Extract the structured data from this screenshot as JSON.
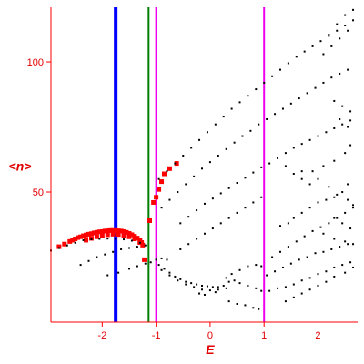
{
  "chart_data": {
    "type": "scatter",
    "title": "",
    "xlabel": "E",
    "ylabel": "<n>",
    "xlim": [
      -2.95,
      2.7
    ],
    "ylim": [
      0,
      121
    ],
    "grid": false,
    "axis_color": "#ff0000",
    "x_ticks": [
      {
        "value": -2,
        "label": "-2"
      },
      {
        "value": -1,
        "label": "-1"
      },
      {
        "value": 0,
        "label": "0"
      },
      {
        "value": 1,
        "label": "1"
      },
      {
        "value": 2,
        "label": "2"
      }
    ],
    "y_ticks": [
      {
        "value": 50,
        "label": "50"
      },
      {
        "value": 100,
        "label": "100"
      }
    ],
    "vlines": [
      {
        "x": -1.75,
        "color": "#0000ff",
        "style": "thick"
      },
      {
        "x": -1.14,
        "color": "#008000",
        "style": "medium"
      },
      {
        "x": -1.0,
        "color": "#ee00ee",
        "style": "thin"
      },
      {
        "x": 1.0,
        "color": "#ee00ee",
        "style": "thin"
      }
    ],
    "series": [
      {
        "color": "#ff0000",
        "marker": "square",
        "points": [
          [
            -2.8,
            29
          ],
          [
            -2.7,
            30
          ],
          [
            -2.6,
            31
          ],
          [
            -2.55,
            31.5
          ],
          [
            -2.5,
            32
          ],
          [
            -2.45,
            32.5
          ],
          [
            -2.4,
            32.8
          ],
          [
            -2.35,
            33.2
          ],
          [
            -2.3,
            33.5
          ],
          [
            -2.25,
            33.8
          ],
          [
            -2.2,
            34
          ],
          [
            -2.15,
            34.3
          ],
          [
            -2.1,
            34.5
          ],
          [
            -2.05,
            34.7
          ],
          [
            -2.0,
            34.8
          ],
          [
            -1.95,
            35
          ],
          [
            -1.9,
            35.1
          ],
          [
            -1.85,
            35.2
          ],
          [
            -1.8,
            35.2
          ],
          [
            -1.75,
            35.2
          ],
          [
            -1.7,
            35.1
          ],
          [
            -1.65,
            35
          ],
          [
            -1.6,
            34.8
          ],
          [
            -1.55,
            34.5
          ],
          [
            -1.5,
            34.1
          ],
          [
            -1.45,
            33.6
          ],
          [
            -1.4,
            33
          ],
          [
            -1.35,
            32.3
          ],
          [
            -1.3,
            31.4
          ],
          [
            -1.27,
            30.6
          ],
          [
            -1.25,
            29.6
          ],
          [
            -2.3,
            31.5
          ],
          [
            -2.2,
            32.2
          ],
          [
            -2.1,
            32.8
          ],
          [
            -2.0,
            33.2
          ],
          [
            -1.9,
            33.6
          ],
          [
            -1.8,
            33.8
          ],
          [
            -1.7,
            33.7
          ],
          [
            -1.6,
            33.4
          ],
          [
            -1.5,
            32.8
          ],
          [
            -1.4,
            32
          ],
          [
            -1.3,
            30.6
          ],
          [
            -1.22,
            24
          ],
          [
            -1.12,
            39
          ],
          [
            -1.05,
            46
          ],
          [
            -1.0,
            48
          ],
          [
            -0.95,
            51
          ],
          [
            -0.9,
            54
          ],
          [
            -0.85,
            57
          ],
          [
            -0.75,
            59
          ],
          [
            -0.62,
            61
          ]
        ]
      },
      {
        "color": "#000000",
        "marker": "dot",
        "points": [
          [
            -2.95,
            27.5
          ],
          [
            -2.8,
            28.5
          ],
          [
            -2.65,
            29.5
          ],
          [
            -2.5,
            30.5
          ],
          [
            -2.35,
            31.5
          ],
          [
            -2.2,
            31.8
          ],
          [
            -2.05,
            32
          ],
          [
            -1.9,
            32.1
          ],
          [
            -1.75,
            32
          ],
          [
            -1.6,
            31.8
          ],
          [
            -1.45,
            31.3
          ],
          [
            -1.3,
            30.5
          ],
          [
            -2.4,
            22
          ],
          [
            -2.25,
            23.5
          ],
          [
            -2.1,
            25
          ],
          [
            -1.95,
            26
          ],
          [
            -1.8,
            27
          ],
          [
            -1.65,
            28
          ],
          [
            -1.5,
            28.5
          ],
          [
            -1.35,
            29
          ],
          [
            -1.2,
            29.5
          ],
          [
            -1.9,
            18
          ],
          [
            -1.7,
            19
          ],
          [
            -1.5,
            20.5
          ],
          [
            -1.35,
            21.5
          ],
          [
            -1.2,
            22.5
          ],
          [
            -1.1,
            23
          ],
          [
            -1.0,
            24
          ],
          [
            -0.9,
            24.5
          ],
          [
            -0.8,
            24
          ],
          [
            -0.95,
            22
          ],
          [
            -0.85,
            20.5
          ],
          [
            -0.75,
            19
          ],
          [
            -0.65,
            17.5
          ],
          [
            -0.55,
            16.5
          ],
          [
            -0.45,
            15.5
          ],
          [
            -0.35,
            15
          ],
          [
            -0.25,
            14.5
          ],
          [
            -0.15,
            14
          ],
          [
            -0.05,
            13.8
          ],
          [
            0.05,
            13.5
          ],
          [
            0.15,
            13.5
          ],
          [
            -0.9,
            20
          ],
          [
            -0.75,
            18
          ],
          [
            -0.6,
            16
          ],
          [
            -0.45,
            14.5
          ],
          [
            -0.3,
            13.5
          ],
          [
            -0.15,
            12.5
          ],
          [
            0.0,
            12.2
          ],
          [
            0.15,
            12.5
          ],
          [
            0.3,
            13
          ],
          [
            -0.2,
            11
          ],
          [
            -0.1,
            10.5
          ],
          [
            0.1,
            11.5
          ],
          [
            0.25,
            14
          ],
          [
            0.35,
            15.5
          ],
          [
            0.45,
            16
          ],
          [
            0.55,
            15
          ],
          [
            0.7,
            14
          ],
          [
            0.85,
            13
          ],
          [
            0.95,
            12
          ],
          [
            0.35,
            8
          ],
          [
            0.5,
            7
          ],
          [
            0.65,
            6.5
          ],
          [
            0.8,
            5.5
          ],
          [
            0.9,
            5
          ],
          [
            0.3,
            17
          ],
          [
            0.4,
            18.5
          ],
          [
            0.55,
            20
          ],
          [
            0.7,
            21.5
          ],
          [
            0.85,
            22
          ],
          [
            0.95,
            21.5
          ],
          [
            1.1,
            12
          ],
          [
            1.25,
            13
          ],
          [
            1.4,
            13.5
          ],
          [
            1.55,
            14.5
          ],
          [
            1.7,
            16
          ],
          [
            1.85,
            17
          ],
          [
            2.0,
            18.5
          ],
          [
            2.15,
            19.5
          ],
          [
            2.3,
            21
          ],
          [
            2.45,
            22
          ],
          [
            2.6,
            23
          ],
          [
            1.05,
            18
          ],
          [
            1.2,
            19.5
          ],
          [
            1.35,
            21
          ],
          [
            1.5,
            22.5
          ],
          [
            1.65,
            24
          ],
          [
            1.8,
            25
          ],
          [
            1.95,
            26.5
          ],
          [
            2.1,
            27
          ],
          [
            2.25,
            28
          ],
          [
            2.4,
            29
          ],
          [
            2.55,
            30
          ],
          [
            1.15,
            25
          ],
          [
            1.3,
            27
          ],
          [
            1.45,
            29
          ],
          [
            1.6,
            31
          ],
          [
            1.75,
            33
          ],
          [
            1.9,
            35
          ],
          [
            2.05,
            36.5
          ],
          [
            2.2,
            38
          ],
          [
            2.35,
            40
          ],
          [
            2.5,
            42
          ],
          [
            2.65,
            44
          ],
          [
            1.4,
            8
          ],
          [
            1.55,
            9.5
          ],
          [
            1.7,
            11
          ],
          [
            1.85,
            12.5
          ],
          [
            2.0,
            14
          ],
          [
            2.15,
            15.5
          ],
          [
            2.3,
            17.5
          ],
          [
            2.5,
            19
          ],
          [
            2.65,
            21
          ],
          [
            1.3,
            37
          ],
          [
            1.45,
            38
          ],
          [
            1.55,
            40
          ],
          [
            1.7,
            42
          ],
          [
            1.85,
            44
          ],
          [
            2.0,
            46
          ],
          [
            2.15,
            47
          ],
          [
            2.3,
            48
          ],
          [
            2.45,
            50
          ],
          [
            2.55,
            53
          ],
          [
            1.4,
            60
          ],
          [
            1.55,
            57
          ],
          [
            1.7,
            55
          ],
          [
            1.85,
            53
          ],
          [
            2.0,
            55
          ],
          [
            2.2,
            52
          ],
          [
            2.35,
            49
          ],
          [
            2.55,
            47
          ],
          [
            2.65,
            45
          ],
          [
            -0.55,
            28
          ],
          [
            -0.4,
            30
          ],
          [
            -0.25,
            32
          ],
          [
            -0.1,
            34
          ],
          [
            0.05,
            36
          ],
          [
            0.2,
            38
          ],
          [
            0.35,
            40
          ],
          [
            0.5,
            42
          ],
          [
            0.65,
            44
          ],
          [
            0.8,
            46
          ],
          [
            0.95,
            48
          ],
          [
            -0.55,
            38
          ],
          [
            -0.4,
            40.5
          ],
          [
            -0.25,
            43
          ],
          [
            -0.1,
            45.5
          ],
          [
            0.05,
            47.5
          ],
          [
            0.2,
            49.5
          ],
          [
            0.35,
            51.5
          ],
          [
            0.5,
            53.5
          ],
          [
            0.65,
            55.5
          ],
          [
            0.8,
            57.5
          ],
          [
            0.95,
            59.5
          ],
          [
            1.1,
            61
          ],
          [
            1.25,
            63
          ],
          [
            1.4,
            65
          ],
          [
            1.55,
            67
          ],
          [
            1.7,
            68.5
          ],
          [
            1.85,
            70
          ],
          [
            2.0,
            71.5
          ],
          [
            2.15,
            73
          ],
          [
            2.3,
            74.5
          ],
          [
            2.45,
            76
          ],
          [
            2.6,
            77.5
          ],
          [
            -0.9,
            44
          ],
          [
            -0.75,
            47
          ],
          [
            -0.6,
            50
          ],
          [
            -0.45,
            53
          ],
          [
            -0.3,
            56
          ],
          [
            -0.15,
            59
          ],
          [
            0.0,
            61.5
          ],
          [
            0.15,
            64
          ],
          [
            0.3,
            66.5
          ],
          [
            0.45,
            69
          ],
          [
            0.6,
            71.5
          ],
          [
            0.75,
            73.5
          ],
          [
            0.9,
            76
          ],
          [
            1.05,
            78
          ],
          [
            1.2,
            80
          ],
          [
            1.35,
            82
          ],
          [
            1.5,
            84
          ],
          [
            1.65,
            86
          ],
          [
            1.8,
            88
          ],
          [
            1.95,
            90
          ],
          [
            2.1,
            92
          ],
          [
            2.25,
            94
          ],
          [
            2.4,
            95.5
          ],
          [
            2.55,
            97
          ],
          [
            -0.95,
            55
          ],
          [
            -0.8,
            58
          ],
          [
            -0.65,
            61
          ],
          [
            -0.5,
            64
          ],
          [
            -0.35,
            67
          ],
          [
            -0.2,
            70
          ],
          [
            -0.05,
            73
          ],
          [
            0.1,
            76
          ],
          [
            0.25,
            79
          ],
          [
            0.4,
            82
          ],
          [
            0.55,
            84.5
          ],
          [
            0.7,
            87
          ],
          [
            0.85,
            89.5
          ],
          [
            1.0,
            92
          ],
          [
            1.15,
            94.5
          ],
          [
            1.3,
            97
          ],
          [
            1.45,
            99.5
          ],
          [
            1.6,
            102
          ],
          [
            1.75,
            104
          ],
          [
            1.9,
            106
          ],
          [
            2.05,
            108
          ],
          [
            2.2,
            110
          ],
          [
            2.35,
            112
          ],
          [
            2.5,
            114
          ],
          [
            2.65,
            116
          ],
          [
            2.1,
            103
          ],
          [
            2.25,
            106
          ],
          [
            2.4,
            109
          ],
          [
            2.55,
            112
          ],
          [
            2.65,
            120
          ],
          [
            2.5,
            118
          ],
          [
            2.35,
            114.5
          ],
          [
            2.2,
            110.5
          ],
          [
            2.3,
            85
          ],
          [
            2.45,
            83
          ],
          [
            2.6,
            81
          ],
          [
            2.4,
            78
          ],
          [
            2.55,
            75
          ],
          [
            2.6,
            68
          ],
          [
            2.5,
            65
          ],
          [
            2.3,
            62
          ],
          [
            2.1,
            60
          ],
          [
            1.9,
            58
          ],
          [
            1.7,
            58
          ],
          [
            2.3,
            40
          ],
          [
            2.45,
            38
          ],
          [
            2.6,
            36
          ],
          [
            2.1,
            34
          ],
          [
            2.3,
            32
          ],
          [
            2.5,
            31
          ],
          [
            2.65,
            30
          ]
        ]
      }
    ]
  }
}
